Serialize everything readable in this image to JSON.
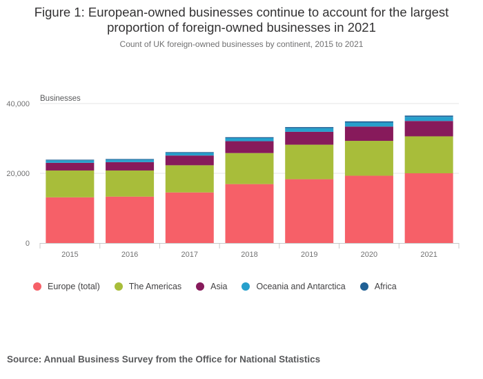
{
  "title_line1": "Figure 1: European-owned businesses continue to account for the largest",
  "title_line2": "proportion of foreign-owned businesses in 2021",
  "subtitle": "Count of UK foreign-owned businesses by continent, 2015 to 2021",
  "source": "Source: Annual Business Survey from the Office for National Statistics",
  "chart_data": {
    "type": "bar",
    "stacked": true,
    "title": "Figure 1: European-owned businesses continue to account for the largest proportion of foreign-owned businesses in 2021",
    "subtitle": "Count of UK foreign-owned businesses by continent, 2015 to 2021",
    "ylabel": "Businesses",
    "xlabel": "",
    "ylim": [
      0,
      40000
    ],
    "yticks": [
      0,
      20000,
      40000
    ],
    "ytick_labels": [
      "0",
      "20,000",
      "40,000"
    ],
    "grid": true,
    "legend_position": "bottom",
    "categories": [
      "2015",
      "2016",
      "2017",
      "2018",
      "2019",
      "2020",
      "2021"
    ],
    "series": [
      {
        "name": "Europe (total)",
        "color": "#f66068",
        "values": [
          13100,
          13300,
          14500,
          16900,
          18300,
          19300,
          20000
        ]
      },
      {
        "name": "The Americas",
        "color": "#a8bd3a",
        "values": [
          7700,
          7500,
          7800,
          8900,
          9900,
          10000,
          10600
        ]
      },
      {
        "name": "Asia",
        "color": "#871a5b",
        "values": [
          2200,
          2400,
          2800,
          3400,
          3700,
          4100,
          4400
        ]
      },
      {
        "name": "Oceania and Antarctica",
        "color": "#27a0cc",
        "values": [
          700,
          700,
          750,
          900,
          1050,
          1150,
          1200
        ]
      },
      {
        "name": "Africa",
        "color": "#206095",
        "values": [
          200,
          200,
          220,
          250,
          300,
          350,
          350
        ]
      }
    ]
  }
}
